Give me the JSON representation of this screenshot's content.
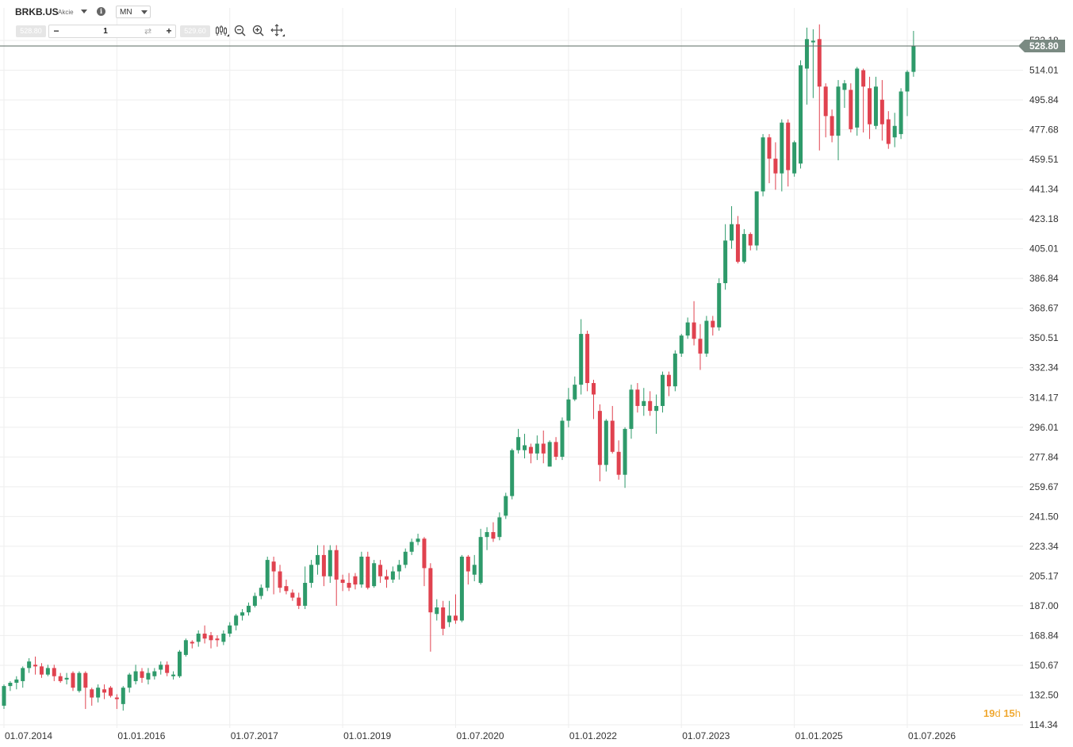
{
  "header": {
    "symbol": "BRKB.US",
    "instrument_type": "Akcie",
    "timeframe": "MN",
    "sell_price": "528.80",
    "buy_price": "529.60",
    "quantity": "1",
    "minus_label": "−",
    "plus_label": "+",
    "swap_icon": "swap-icon",
    "tools": [
      "candlestick-type-icon",
      "zoom-out-icon",
      "zoom-in-icon",
      "crosshair-icon"
    ]
  },
  "countdown": {
    "days": "19",
    "days_unit": "d",
    "hours": "15",
    "hours_unit": "h"
  },
  "colors": {
    "up": "#2e9a6a",
    "down": "#e0424f",
    "grid": "#eeeeee",
    "price_line": "#5a6a62",
    "price_tag": "#7a8a82",
    "countdown": "#f0a830"
  },
  "chart_data": {
    "type": "candlestick",
    "title": "",
    "xlabel": "",
    "ylabel": "",
    "ylim": [
      114.34,
      532.18
    ],
    "y_ticks": [
      532.18,
      514.01,
      495.84,
      477.68,
      459.51,
      441.34,
      423.18,
      405.01,
      386.84,
      368.67,
      350.51,
      332.34,
      314.17,
      296.01,
      277.84,
      259.67,
      241.5,
      223.34,
      205.17,
      187.0,
      168.84,
      150.67,
      132.5,
      114.34
    ],
    "x_ticks": [
      "01.07.2014",
      "01.01.2016",
      "01.07.2017",
      "01.01.2019",
      "01.07.2020",
      "01.01.2022",
      "01.07.2023",
      "01.01.2025",
      "01.07.2026"
    ],
    "current_price": 528.8,
    "candles": [
      {
        "date": "2014-06",
        "o": 127,
        "h": 131,
        "l": 124,
        "c": 130
      },
      {
        "date": "2014-07",
        "o": 126,
        "h": 139,
        "l": 124,
        "c": 138
      },
      {
        "date": "2014-08",
        "o": 138,
        "h": 141,
        "l": 135,
        "c": 140
      },
      {
        "date": "2014-09",
        "o": 140,
        "h": 144,
        "l": 136,
        "c": 142
      },
      {
        "date": "2014-10",
        "o": 141,
        "h": 150,
        "l": 137,
        "c": 149
      },
      {
        "date": "2014-11",
        "o": 149,
        "h": 155,
        "l": 146,
        "c": 153
      },
      {
        "date": "2014-12",
        "o": 151,
        "h": 156,
        "l": 145,
        "c": 150
      },
      {
        "date": "2015-01",
        "o": 150,
        "h": 152,
        "l": 143,
        "c": 145
      },
      {
        "date": "2015-02",
        "o": 145,
        "h": 151,
        "l": 144,
        "c": 149
      },
      {
        "date": "2015-03",
        "o": 149,
        "h": 151,
        "l": 141,
        "c": 144
      },
      {
        "date": "2015-04",
        "o": 144,
        "h": 146,
        "l": 140,
        "c": 141
      },
      {
        "date": "2015-05",
        "o": 142,
        "h": 146,
        "l": 139,
        "c": 143
      },
      {
        "date": "2015-06",
        "o": 146,
        "h": 147,
        "l": 135,
        "c": 137
      },
      {
        "date": "2015-07",
        "o": 135,
        "h": 147,
        "l": 134,
        "c": 146
      },
      {
        "date": "2015-08",
        "o": 146,
        "h": 147,
        "l": 124,
        "c": 137
      },
      {
        "date": "2015-09",
        "o": 136,
        "h": 137,
        "l": 126,
        "c": 131
      },
      {
        "date": "2015-10",
        "o": 131,
        "h": 139,
        "l": 128,
        "c": 137
      },
      {
        "date": "2015-11",
        "o": 136,
        "h": 139,
        "l": 130,
        "c": 134
      },
      {
        "date": "2015-12",
        "o": 137,
        "h": 138,
        "l": 131,
        "c": 132
      },
      {
        "date": "2016-01",
        "o": 131,
        "h": 133,
        "l": 124,
        "c": 130
      },
      {
        "date": "2016-02",
        "o": 127,
        "h": 138,
        "l": 123,
        "c": 137
      },
      {
        "date": "2016-03",
        "o": 137,
        "h": 146,
        "l": 134,
        "c": 145
      },
      {
        "date": "2016-04",
        "o": 141,
        "h": 151,
        "l": 139,
        "c": 147
      },
      {
        "date": "2016-05",
        "o": 147,
        "h": 149,
        "l": 140,
        "c": 143
      },
      {
        "date": "2016-06",
        "o": 142,
        "h": 149,
        "l": 139,
        "c": 146
      },
      {
        "date": "2016-07",
        "o": 144,
        "h": 149,
        "l": 142,
        "c": 147
      },
      {
        "date": "2016-08",
        "o": 148,
        "h": 153,
        "l": 145,
        "c": 151
      },
      {
        "date": "2016-09",
        "o": 151,
        "h": 153,
        "l": 144,
        "c": 146
      },
      {
        "date": "2016-10",
        "o": 144,
        "h": 147,
        "l": 142,
        "c": 145
      },
      {
        "date": "2016-11",
        "o": 144,
        "h": 160,
        "l": 143,
        "c": 159
      },
      {
        "date": "2016-12",
        "o": 157,
        "h": 167,
        "l": 156,
        "c": 166
      },
      {
        "date": "2017-01",
        "o": 165,
        "h": 166,
        "l": 161,
        "c": 164
      },
      {
        "date": "2017-02",
        "o": 165,
        "h": 172,
        "l": 162,
        "c": 170
      },
      {
        "date": "2017-03",
        "o": 170,
        "h": 175,
        "l": 164,
        "c": 167
      },
      {
        "date": "2017-04",
        "o": 169,
        "h": 171,
        "l": 161,
        "c": 166
      },
      {
        "date": "2017-05",
        "o": 167,
        "h": 169,
        "l": 162,
        "c": 166
      },
      {
        "date": "2017-06",
        "o": 165,
        "h": 172,
        "l": 163,
        "c": 170
      },
      {
        "date": "2017-07",
        "o": 170,
        "h": 177,
        "l": 168,
        "c": 175
      },
      {
        "date": "2017-08",
        "o": 175,
        "h": 182,
        "l": 172,
        "c": 181
      },
      {
        "date": "2017-09",
        "o": 181,
        "h": 185,
        "l": 178,
        "c": 183
      },
      {
        "date": "2017-10",
        "o": 183,
        "h": 189,
        "l": 181,
        "c": 187
      },
      {
        "date": "2017-11",
        "o": 187,
        "h": 195,
        "l": 186,
        "c": 193
      },
      {
        "date": "2017-12",
        "o": 193,
        "h": 200,
        "l": 191,
        "c": 198
      },
      {
        "date": "2018-01",
        "o": 198,
        "h": 217,
        "l": 196,
        "c": 215
      },
      {
        "date": "2018-02",
        "o": 214,
        "h": 217,
        "l": 194,
        "c": 208
      },
      {
        "date": "2018-03",
        "o": 208,
        "h": 212,
        "l": 195,
        "c": 198
      },
      {
        "date": "2018-04",
        "o": 199,
        "h": 203,
        "l": 194,
        "c": 196
      },
      {
        "date": "2018-05",
        "o": 195,
        "h": 197,
        "l": 190,
        "c": 192
      },
      {
        "date": "2018-06",
        "o": 192,
        "h": 195,
        "l": 185,
        "c": 187
      },
      {
        "date": "2018-07",
        "o": 187,
        "h": 211,
        "l": 185,
        "c": 201
      },
      {
        "date": "2018-08",
        "o": 201,
        "h": 215,
        "l": 198,
        "c": 212
      },
      {
        "date": "2018-09",
        "o": 212,
        "h": 224,
        "l": 206,
        "c": 218
      },
      {
        "date": "2018-10",
        "o": 218,
        "h": 224,
        "l": 199,
        "c": 205
      },
      {
        "date": "2018-11",
        "o": 205,
        "h": 224,
        "l": 201,
        "c": 221
      },
      {
        "date": "2018-12",
        "o": 221,
        "h": 224,
        "l": 187,
        "c": 203
      },
      {
        "date": "2019-01",
        "o": 203,
        "h": 206,
        "l": 196,
        "c": 201
      },
      {
        "date": "2019-02",
        "o": 201,
        "h": 207,
        "l": 196,
        "c": 198
      },
      {
        "date": "2019-03",
        "o": 205,
        "h": 207,
        "l": 197,
        "c": 200
      },
      {
        "date": "2019-04",
        "o": 200,
        "h": 220,
        "l": 198,
        "c": 217
      },
      {
        "date": "2019-05",
        "o": 217,
        "h": 220,
        "l": 197,
        "c": 198
      },
      {
        "date": "2019-06",
        "o": 199,
        "h": 215,
        "l": 198,
        "c": 213
      },
      {
        "date": "2019-07",
        "o": 212,
        "h": 215,
        "l": 201,
        "c": 205
      },
      {
        "date": "2019-08",
        "o": 205,
        "h": 209,
        "l": 198,
        "c": 203
      },
      {
        "date": "2019-09",
        "o": 203,
        "h": 211,
        "l": 201,
        "c": 208
      },
      {
        "date": "2019-10",
        "o": 208,
        "h": 215,
        "l": 203,
        "c": 212
      },
      {
        "date": "2019-11",
        "o": 212,
        "h": 222,
        "l": 210,
        "c": 220
      },
      {
        "date": "2019-12",
        "o": 220,
        "h": 228,
        "l": 218,
        "c": 226
      },
      {
        "date": "2020-01",
        "o": 226,
        "h": 231,
        "l": 224,
        "c": 228
      },
      {
        "date": "2020-02",
        "o": 228,
        "h": 229,
        "l": 199,
        "c": 210
      },
      {
        "date": "2020-03",
        "o": 210,
        "h": 213,
        "l": 159,
        "c": 183
      },
      {
        "date": "2020-04",
        "o": 182,
        "h": 191,
        "l": 178,
        "c": 186
      },
      {
        "date": "2020-05",
        "o": 186,
        "h": 190,
        "l": 169,
        "c": 173
      },
      {
        "date": "2020-06",
        "o": 177,
        "h": 190,
        "l": 174,
        "c": 181
      },
      {
        "date": "2020-07",
        "o": 181,
        "h": 194,
        "l": 176,
        "c": 178
      },
      {
        "date": "2020-08",
        "o": 178,
        "h": 218,
        "l": 177,
        "c": 217
      },
      {
        "date": "2020-09",
        "o": 217,
        "h": 218,
        "l": 200,
        "c": 208
      },
      {
        "date": "2020-10",
        "o": 206,
        "h": 218,
        "l": 202,
        "c": 212
      },
      {
        "date": "2020-11",
        "o": 201,
        "h": 234,
        "l": 200,
        "c": 229
      },
      {
        "date": "2020-12",
        "o": 229,
        "h": 235,
        "l": 221,
        "c": 232
      },
      {
        "date": "2021-01",
        "o": 232,
        "h": 238,
        "l": 226,
        "c": 228
      },
      {
        "date": "2021-02",
        "o": 229,
        "h": 244,
        "l": 227,
        "c": 241
      },
      {
        "date": "2021-03",
        "o": 242,
        "h": 256,
        "l": 240,
        "c": 254
      },
      {
        "date": "2021-04",
        "o": 254,
        "h": 283,
        "l": 252,
        "c": 282
      },
      {
        "date": "2021-05",
        "o": 282,
        "h": 295,
        "l": 280,
        "c": 290
      },
      {
        "date": "2021-06",
        "o": 282,
        "h": 292,
        "l": 277,
        "c": 285
      },
      {
        "date": "2021-07",
        "o": 284,
        "h": 286,
        "l": 274,
        "c": 280
      },
      {
        "date": "2021-08",
        "o": 280,
        "h": 291,
        "l": 276,
        "c": 286
      },
      {
        "date": "2021-09",
        "o": 286,
        "h": 294,
        "l": 274,
        "c": 280
      },
      {
        "date": "2021-10",
        "o": 272,
        "h": 288,
        "l": 272,
        "c": 287
      },
      {
        "date": "2021-11",
        "o": 287,
        "h": 290,
        "l": 276,
        "c": 278
      },
      {
        "date": "2021-12",
        "o": 278,
        "h": 302,
        "l": 276,
        "c": 300
      },
      {
        "date": "2022-01",
        "o": 300,
        "h": 320,
        "l": 296,
        "c": 313
      },
      {
        "date": "2022-02",
        "o": 313,
        "h": 327,
        "l": 312,
        "c": 322
      },
      {
        "date": "2022-03",
        "o": 322,
        "h": 362,
        "l": 316,
        "c": 353
      },
      {
        "date": "2022-04",
        "o": 353,
        "h": 355,
        "l": 318,
        "c": 323
      },
      {
        "date": "2022-05",
        "o": 323,
        "h": 325,
        "l": 301,
        "c": 316
      },
      {
        "date": "2022-06",
        "o": 306,
        "h": 310,
        "l": 263,
        "c": 273
      },
      {
        "date": "2022-07",
        "o": 273,
        "h": 301,
        "l": 269,
        "c": 300
      },
      {
        "date": "2022-08",
        "o": 300,
        "h": 309,
        "l": 280,
        "c": 281
      },
      {
        "date": "2022-09",
        "o": 281,
        "h": 288,
        "l": 264,
        "c": 267
      },
      {
        "date": "2022-10",
        "o": 267,
        "h": 296,
        "l": 259,
        "c": 295
      },
      {
        "date": "2022-11",
        "o": 295,
        "h": 322,
        "l": 289,
        "c": 319
      },
      {
        "date": "2022-12",
        "o": 319,
        "h": 323,
        "l": 305,
        "c": 309
      },
      {
        "date": "2023-01",
        "o": 309,
        "h": 320,
        "l": 303,
        "c": 312
      },
      {
        "date": "2023-02",
        "o": 312,
        "h": 318,
        "l": 303,
        "c": 306
      },
      {
        "date": "2023-03",
        "o": 306,
        "h": 316,
        "l": 292,
        "c": 309
      },
      {
        "date": "2023-04",
        "o": 309,
        "h": 330,
        "l": 305,
        "c": 328
      },
      {
        "date": "2023-05",
        "o": 328,
        "h": 330,
        "l": 315,
        "c": 321
      },
      {
        "date": "2023-06",
        "o": 321,
        "h": 343,
        "l": 318,
        "c": 341
      },
      {
        "date": "2023-07",
        "o": 341,
        "h": 353,
        "l": 339,
        "c": 352
      },
      {
        "date": "2023-08",
        "o": 352,
        "h": 363,
        "l": 350,
        "c": 360
      },
      {
        "date": "2023-09",
        "o": 360,
        "h": 373,
        "l": 346,
        "c": 350
      },
      {
        "date": "2023-10",
        "o": 350,
        "h": 359,
        "l": 331,
        "c": 341
      },
      {
        "date": "2023-11",
        "o": 341,
        "h": 364,
        "l": 339,
        "c": 361
      },
      {
        "date": "2023-12",
        "o": 361,
        "h": 364,
        "l": 352,
        "c": 357
      },
      {
        "date": "2024-01",
        "o": 357,
        "h": 387,
        "l": 355,
        "c": 384
      },
      {
        "date": "2024-02",
        "o": 384,
        "h": 420,
        "l": 380,
        "c": 410
      },
      {
        "date": "2024-03",
        "o": 410,
        "h": 431,
        "l": 405,
        "c": 420
      },
      {
        "date": "2024-04",
        "o": 420,
        "h": 425,
        "l": 396,
        "c": 397
      },
      {
        "date": "2024-05",
        "o": 397,
        "h": 417,
        "l": 396,
        "c": 414
      },
      {
        "date": "2024-06",
        "o": 414,
        "h": 415,
        "l": 404,
        "c": 407
      },
      {
        "date": "2024-07",
        "o": 407,
        "h": 440,
        "l": 404,
        "c": 440
      },
      {
        "date": "2024-08",
        "o": 440,
        "h": 475,
        "l": 437,
        "c": 473
      },
      {
        "date": "2024-09",
        "o": 473,
        "h": 475,
        "l": 445,
        "c": 460
      },
      {
        "date": "2024-10",
        "o": 460,
        "h": 470,
        "l": 441,
        "c": 451
      },
      {
        "date": "2024-11",
        "o": 451,
        "h": 484,
        "l": 440,
        "c": 482
      },
      {
        "date": "2024-12",
        "o": 482,
        "h": 484,
        "l": 443,
        "c": 453
      },
      {
        "date": "2025-01",
        "o": 451,
        "h": 471,
        "l": 449,
        "c": 470
      },
      {
        "date": "2025-02",
        "o": 457,
        "h": 520,
        "l": 454,
        "c": 517
      },
      {
        "date": "2025-03",
        "o": 515,
        "h": 540,
        "l": 493,
        "c": 533
      },
      {
        "date": "2025-04",
        "o": 531,
        "h": 539,
        "l": 497,
        "c": 532
      },
      {
        "date": "2025-05",
        "o": 533,
        "h": 542,
        "l": 465,
        "c": 504
      },
      {
        "date": "2025-06",
        "o": 504,
        "h": 506,
        "l": 473,
        "c": 486
      },
      {
        "date": "2025-07",
        "o": 486,
        "h": 490,
        "l": 470,
        "c": 474
      },
      {
        "date": "2025-08",
        "o": 474,
        "h": 508,
        "l": 459,
        "c": 504
      },
      {
        "date": "2025-09",
        "o": 502,
        "h": 508,
        "l": 491,
        "c": 506
      },
      {
        "date": "2025-10",
        "o": 502,
        "h": 506,
        "l": 476,
        "c": 478
      },
      {
        "date": "2025-11",
        "o": 479,
        "h": 516,
        "l": 474,
        "c": 515
      },
      {
        "date": "2025-12",
        "o": 514,
        "h": 515,
        "l": 476,
        "c": 504
      },
      {
        "date": "2026-01",
        "o": 503,
        "h": 510,
        "l": 472,
        "c": 481
      },
      {
        "date": "2026-02",
        "o": 480,
        "h": 510,
        "l": 478,
        "c": 504
      },
      {
        "date": "2026-03",
        "o": 496,
        "h": 508,
        "l": 471,
        "c": 481
      },
      {
        "date": "2026-04",
        "o": 484,
        "h": 489,
        "l": 466,
        "c": 469
      },
      {
        "date": "2026-05",
        "o": 473,
        "h": 488,
        "l": 467,
        "c": 480
      },
      {
        "date": "2026-06",
        "o": 475,
        "h": 503,
        "l": 472,
        "c": 501
      },
      {
        "date": "2026-07",
        "o": 501,
        "h": 514,
        "l": 486,
        "c": 513
      },
      {
        "date": "2026-08",
        "o": 513,
        "h": 538,
        "l": 510,
        "c": 528.8
      }
    ]
  }
}
